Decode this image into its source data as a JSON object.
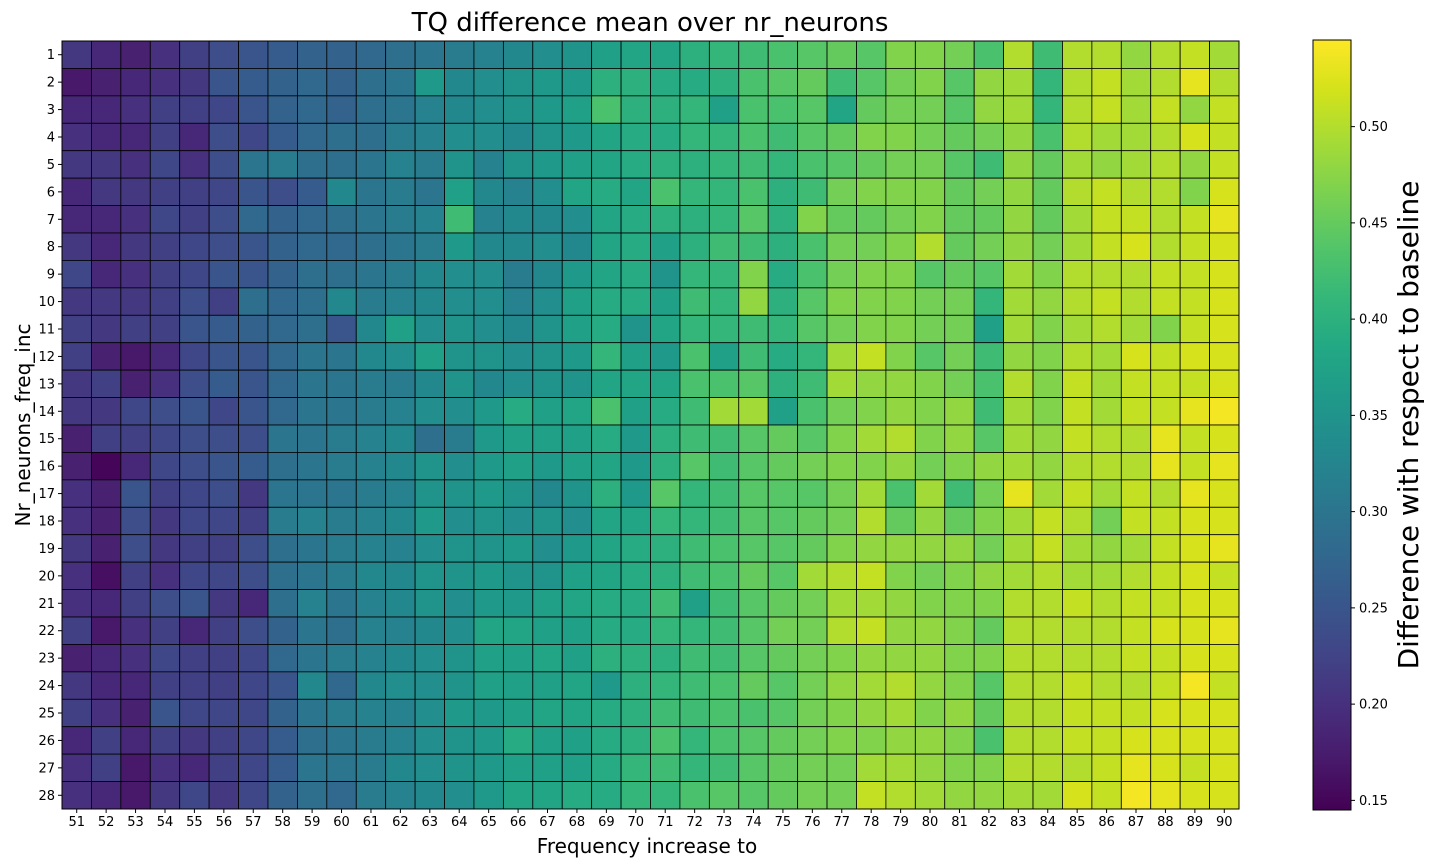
{
  "chart_data": {
    "type": "heatmap",
    "title": "TQ difference mean over nr_neurons",
    "xlabel": "Frequency increase to",
    "ylabel": "Nr_neurons_freq_inc",
    "x": [
      51,
      52,
      53,
      54,
      55,
      56,
      57,
      58,
      59,
      60,
      61,
      62,
      63,
      64,
      65,
      66,
      67,
      68,
      69,
      70,
      71,
      72,
      73,
      74,
      75,
      76,
      77,
      78,
      79,
      80,
      81,
      82,
      83,
      84,
      85,
      86,
      87,
      88,
      89,
      90
    ],
    "y": [
      1,
      2,
      3,
      4,
      5,
      6,
      7,
      8,
      9,
      10,
      11,
      12,
      13,
      14,
      15,
      16,
      17,
      18,
      19,
      20,
      21,
      22,
      23,
      24,
      25,
      26,
      27,
      28
    ],
    "values": [
      [
        0.21,
        0.19,
        0.18,
        0.2,
        0.22,
        0.24,
        0.25,
        0.26,
        0.27,
        0.27,
        0.28,
        0.29,
        0.3,
        0.31,
        0.32,
        0.33,
        0.34,
        0.35,
        0.37,
        0.38,
        0.38,
        0.4,
        0.41,
        0.42,
        0.43,
        0.44,
        0.45,
        0.44,
        0.47,
        0.47,
        0.46,
        0.43,
        0.5,
        0.42,
        0.5,
        0.5,
        0.48,
        0.5,
        0.51,
        0.49
      ],
      [
        0.17,
        0.18,
        0.19,
        0.2,
        0.21,
        0.25,
        0.26,
        0.27,
        0.28,
        0.27,
        0.29,
        0.3,
        0.36,
        0.33,
        0.34,
        0.35,
        0.36,
        0.36,
        0.4,
        0.4,
        0.39,
        0.39,
        0.4,
        0.43,
        0.44,
        0.45,
        0.42,
        0.44,
        0.46,
        0.47,
        0.44,
        0.48,
        0.49,
        0.41,
        0.5,
        0.51,
        0.49,
        0.5,
        0.53,
        0.5
      ],
      [
        0.19,
        0.19,
        0.2,
        0.22,
        0.22,
        0.23,
        0.25,
        0.27,
        0.28,
        0.27,
        0.29,
        0.3,
        0.32,
        0.33,
        0.34,
        0.35,
        0.36,
        0.37,
        0.43,
        0.4,
        0.4,
        0.41,
        0.37,
        0.43,
        0.43,
        0.44,
        0.38,
        0.45,
        0.46,
        0.46,
        0.44,
        0.48,
        0.49,
        0.41,
        0.5,
        0.51,
        0.49,
        0.51,
        0.48,
        0.51
      ],
      [
        0.2,
        0.19,
        0.19,
        0.22,
        0.19,
        0.24,
        0.23,
        0.26,
        0.28,
        0.29,
        0.29,
        0.31,
        0.32,
        0.34,
        0.34,
        0.33,
        0.35,
        0.36,
        0.38,
        0.39,
        0.39,
        0.41,
        0.41,
        0.43,
        0.42,
        0.44,
        0.45,
        0.47,
        0.47,
        0.46,
        0.45,
        0.46,
        0.48,
        0.43,
        0.5,
        0.49,
        0.49,
        0.5,
        0.52,
        0.51
      ],
      [
        0.21,
        0.21,
        0.2,
        0.23,
        0.2,
        0.24,
        0.3,
        0.31,
        0.29,
        0.29,
        0.3,
        0.32,
        0.31,
        0.35,
        0.32,
        0.35,
        0.36,
        0.37,
        0.38,
        0.39,
        0.4,
        0.4,
        0.41,
        0.42,
        0.41,
        0.43,
        0.44,
        0.45,
        0.46,
        0.46,
        0.44,
        0.42,
        0.48,
        0.45,
        0.49,
        0.48,
        0.49,
        0.5,
        0.48,
        0.51
      ],
      [
        0.19,
        0.21,
        0.21,
        0.22,
        0.22,
        0.23,
        0.25,
        0.24,
        0.26,
        0.33,
        0.3,
        0.31,
        0.3,
        0.37,
        0.33,
        0.32,
        0.34,
        0.38,
        0.39,
        0.38,
        0.43,
        0.41,
        0.41,
        0.43,
        0.4,
        0.42,
        0.46,
        0.47,
        0.47,
        0.47,
        0.45,
        0.46,
        0.48,
        0.45,
        0.5,
        0.51,
        0.5,
        0.5,
        0.47,
        0.52
      ],
      [
        0.19,
        0.19,
        0.2,
        0.23,
        0.22,
        0.24,
        0.28,
        0.27,
        0.28,
        0.29,
        0.3,
        0.31,
        0.32,
        0.42,
        0.32,
        0.33,
        0.33,
        0.34,
        0.38,
        0.39,
        0.4,
        0.4,
        0.41,
        0.44,
        0.4,
        0.47,
        0.45,
        0.45,
        0.46,
        0.47,
        0.45,
        0.45,
        0.48,
        0.45,
        0.49,
        0.51,
        0.51,
        0.5,
        0.51,
        0.53
      ],
      [
        0.21,
        0.19,
        0.21,
        0.22,
        0.23,
        0.24,
        0.25,
        0.27,
        0.28,
        0.28,
        0.29,
        0.3,
        0.31,
        0.36,
        0.33,
        0.33,
        0.34,
        0.33,
        0.38,
        0.39,
        0.37,
        0.4,
        0.42,
        0.42,
        0.4,
        0.43,
        0.46,
        0.46,
        0.47,
        0.5,
        0.45,
        0.46,
        0.48,
        0.46,
        0.49,
        0.51,
        0.52,
        0.5,
        0.51,
        0.52
      ],
      [
        0.23,
        0.19,
        0.2,
        0.22,
        0.23,
        0.25,
        0.25,
        0.27,
        0.29,
        0.29,
        0.3,
        0.31,
        0.33,
        0.34,
        0.34,
        0.31,
        0.33,
        0.36,
        0.38,
        0.39,
        0.35,
        0.41,
        0.41,
        0.47,
        0.39,
        0.43,
        0.46,
        0.47,
        0.47,
        0.44,
        0.45,
        0.44,
        0.49,
        0.47,
        0.5,
        0.5,
        0.5,
        0.51,
        0.51,
        0.52
      ],
      [
        0.21,
        0.21,
        0.21,
        0.22,
        0.24,
        0.22,
        0.29,
        0.28,
        0.29,
        0.33,
        0.31,
        0.32,
        0.33,
        0.34,
        0.34,
        0.32,
        0.34,
        0.37,
        0.39,
        0.39,
        0.37,
        0.42,
        0.41,
        0.48,
        0.4,
        0.44,
        0.47,
        0.47,
        0.47,
        0.46,
        0.46,
        0.41,
        0.49,
        0.48,
        0.5,
        0.51,
        0.5,
        0.51,
        0.51,
        0.52
      ],
      [
        0.22,
        0.21,
        0.22,
        0.22,
        0.25,
        0.26,
        0.27,
        0.28,
        0.29,
        0.25,
        0.33,
        0.37,
        0.34,
        0.35,
        0.34,
        0.33,
        0.35,
        0.37,
        0.39,
        0.35,
        0.38,
        0.41,
        0.41,
        0.42,
        0.41,
        0.44,
        0.46,
        0.47,
        0.47,
        0.46,
        0.46,
        0.37,
        0.49,
        0.47,
        0.49,
        0.5,
        0.49,
        0.47,
        0.51,
        0.52
      ],
      [
        0.22,
        0.18,
        0.17,
        0.19,
        0.23,
        0.25,
        0.25,
        0.28,
        0.3,
        0.3,
        0.33,
        0.34,
        0.37,
        0.35,
        0.35,
        0.34,
        0.35,
        0.36,
        0.41,
        0.37,
        0.36,
        0.43,
        0.37,
        0.42,
        0.39,
        0.41,
        0.49,
        0.51,
        0.47,
        0.44,
        0.46,
        0.42,
        0.48,
        0.47,
        0.5,
        0.49,
        0.52,
        0.51,
        0.52,
        0.52
      ],
      [
        0.21,
        0.22,
        0.18,
        0.2,
        0.24,
        0.26,
        0.25,
        0.28,
        0.3,
        0.3,
        0.31,
        0.31,
        0.33,
        0.35,
        0.33,
        0.34,
        0.35,
        0.35,
        0.38,
        0.38,
        0.38,
        0.43,
        0.43,
        0.44,
        0.4,
        0.42,
        0.49,
        0.48,
        0.48,
        0.47,
        0.46,
        0.43,
        0.5,
        0.47,
        0.51,
        0.49,
        0.51,
        0.51,
        0.51,
        0.52
      ],
      [
        0.21,
        0.21,
        0.23,
        0.24,
        0.25,
        0.23,
        0.25,
        0.28,
        0.3,
        0.3,
        0.31,
        0.32,
        0.34,
        0.34,
        0.36,
        0.39,
        0.37,
        0.38,
        0.43,
        0.37,
        0.39,
        0.42,
        0.49,
        0.49,
        0.37,
        0.43,
        0.46,
        0.47,
        0.48,
        0.47,
        0.48,
        0.42,
        0.49,
        0.47,
        0.51,
        0.49,
        0.51,
        0.51,
        0.53,
        0.54
      ],
      [
        0.18,
        0.22,
        0.22,
        0.23,
        0.24,
        0.24,
        0.24,
        0.3,
        0.3,
        0.31,
        0.32,
        0.33,
        0.29,
        0.31,
        0.36,
        0.37,
        0.37,
        0.37,
        0.39,
        0.36,
        0.4,
        0.42,
        0.42,
        0.44,
        0.45,
        0.44,
        0.47,
        0.49,
        0.5,
        0.47,
        0.48,
        0.44,
        0.49,
        0.48,
        0.51,
        0.5,
        0.5,
        0.53,
        0.51,
        0.52
      ],
      [
        0.18,
        0.15,
        0.19,
        0.23,
        0.24,
        0.25,
        0.26,
        0.29,
        0.3,
        0.31,
        0.32,
        0.33,
        0.35,
        0.34,
        0.36,
        0.37,
        0.36,
        0.37,
        0.38,
        0.36,
        0.4,
        0.44,
        0.42,
        0.44,
        0.45,
        0.46,
        0.47,
        0.47,
        0.48,
        0.46,
        0.47,
        0.48,
        0.49,
        0.48,
        0.5,
        0.5,
        0.5,
        0.53,
        0.51,
        0.53
      ],
      [
        0.2,
        0.18,
        0.25,
        0.22,
        0.23,
        0.24,
        0.21,
        0.3,
        0.3,
        0.3,
        0.31,
        0.32,
        0.35,
        0.35,
        0.36,
        0.35,
        0.33,
        0.35,
        0.4,
        0.36,
        0.44,
        0.41,
        0.42,
        0.44,
        0.44,
        0.44,
        0.46,
        0.49,
        0.43,
        0.49,
        0.42,
        0.46,
        0.53,
        0.49,
        0.51,
        0.49,
        0.51,
        0.5,
        0.53,
        0.52
      ],
      [
        0.2,
        0.18,
        0.24,
        0.21,
        0.23,
        0.23,
        0.22,
        0.31,
        0.32,
        0.31,
        0.32,
        0.33,
        0.36,
        0.34,
        0.35,
        0.34,
        0.35,
        0.34,
        0.38,
        0.38,
        0.41,
        0.41,
        0.42,
        0.44,
        0.44,
        0.45,
        0.46,
        0.5,
        0.45,
        0.48,
        0.45,
        0.47,
        0.49,
        0.51,
        0.5,
        0.46,
        0.51,
        0.51,
        0.52,
        0.52
      ],
      [
        0.21,
        0.18,
        0.24,
        0.21,
        0.22,
        0.22,
        0.24,
        0.29,
        0.3,
        0.31,
        0.32,
        0.32,
        0.34,
        0.35,
        0.35,
        0.36,
        0.34,
        0.36,
        0.38,
        0.39,
        0.4,
        0.42,
        0.43,
        0.44,
        0.44,
        0.45,
        0.47,
        0.48,
        0.48,
        0.48,
        0.48,
        0.46,
        0.49,
        0.51,
        0.49,
        0.48,
        0.49,
        0.51,
        0.52,
        0.53
      ],
      [
        0.2,
        0.16,
        0.22,
        0.2,
        0.23,
        0.23,
        0.24,
        0.29,
        0.3,
        0.31,
        0.33,
        0.33,
        0.35,
        0.35,
        0.36,
        0.35,
        0.35,
        0.37,
        0.38,
        0.39,
        0.4,
        0.42,
        0.43,
        0.45,
        0.44,
        0.49,
        0.5,
        0.51,
        0.47,
        0.46,
        0.47,
        0.48,
        0.49,
        0.5,
        0.49,
        0.49,
        0.5,
        0.51,
        0.52,
        0.51
      ],
      [
        0.2,
        0.19,
        0.22,
        0.24,
        0.25,
        0.21,
        0.19,
        0.29,
        0.32,
        0.3,
        0.32,
        0.33,
        0.35,
        0.34,
        0.36,
        0.36,
        0.37,
        0.38,
        0.39,
        0.39,
        0.42,
        0.37,
        0.42,
        0.44,
        0.45,
        0.46,
        0.49,
        0.49,
        0.48,
        0.47,
        0.47,
        0.47,
        0.5,
        0.5,
        0.51,
        0.5,
        0.51,
        0.51,
        0.52,
        0.52
      ],
      [
        0.22,
        0.17,
        0.2,
        0.22,
        0.19,
        0.22,
        0.24,
        0.27,
        0.3,
        0.29,
        0.32,
        0.32,
        0.33,
        0.34,
        0.38,
        0.38,
        0.37,
        0.37,
        0.39,
        0.39,
        0.41,
        0.41,
        0.42,
        0.44,
        0.46,
        0.46,
        0.5,
        0.51,
        0.48,
        0.48,
        0.47,
        0.45,
        0.5,
        0.5,
        0.5,
        0.5,
        0.51,
        0.52,
        0.52,
        0.53
      ],
      [
        0.18,
        0.19,
        0.2,
        0.23,
        0.22,
        0.22,
        0.23,
        0.28,
        0.3,
        0.31,
        0.32,
        0.33,
        0.34,
        0.35,
        0.37,
        0.37,
        0.38,
        0.37,
        0.4,
        0.4,
        0.4,
        0.42,
        0.42,
        0.44,
        0.45,
        0.46,
        0.47,
        0.48,
        0.48,
        0.48,
        0.47,
        0.47,
        0.5,
        0.5,
        0.5,
        0.5,
        0.51,
        0.51,
        0.52,
        0.52
      ],
      [
        0.21,
        0.19,
        0.19,
        0.22,
        0.22,
        0.22,
        0.23,
        0.25,
        0.33,
        0.28,
        0.33,
        0.34,
        0.34,
        0.35,
        0.37,
        0.37,
        0.37,
        0.38,
        0.36,
        0.4,
        0.41,
        0.42,
        0.43,
        0.45,
        0.44,
        0.46,
        0.48,
        0.49,
        0.5,
        0.48,
        0.47,
        0.44,
        0.5,
        0.5,
        0.51,
        0.5,
        0.5,
        0.51,
        0.54,
        0.51
      ],
      [
        0.22,
        0.2,
        0.18,
        0.25,
        0.23,
        0.23,
        0.23,
        0.27,
        0.3,
        0.31,
        0.32,
        0.32,
        0.34,
        0.36,
        0.36,
        0.37,
        0.38,
        0.38,
        0.39,
        0.4,
        0.42,
        0.42,
        0.43,
        0.43,
        0.44,
        0.46,
        0.47,
        0.48,
        0.49,
        0.47,
        0.48,
        0.45,
        0.5,
        0.5,
        0.51,
        0.51,
        0.51,
        0.52,
        0.52,
        0.52
      ],
      [
        0.19,
        0.22,
        0.19,
        0.22,
        0.21,
        0.22,
        0.23,
        0.26,
        0.29,
        0.3,
        0.31,
        0.32,
        0.34,
        0.35,
        0.36,
        0.39,
        0.37,
        0.37,
        0.39,
        0.4,
        0.43,
        0.41,
        0.43,
        0.44,
        0.45,
        0.46,
        0.47,
        0.47,
        0.48,
        0.48,
        0.47,
        0.43,
        0.5,
        0.5,
        0.51,
        0.51,
        0.52,
        0.52,
        0.52,
        0.52
      ],
      [
        0.2,
        0.22,
        0.17,
        0.2,
        0.19,
        0.22,
        0.23,
        0.26,
        0.3,
        0.3,
        0.31,
        0.33,
        0.34,
        0.35,
        0.36,
        0.37,
        0.37,
        0.37,
        0.39,
        0.41,
        0.42,
        0.41,
        0.42,
        0.44,
        0.45,
        0.46,
        0.46,
        0.49,
        0.49,
        0.48,
        0.47,
        0.47,
        0.5,
        0.5,
        0.5,
        0.51,
        0.53,
        0.52,
        0.51,
        0.52
      ],
      [
        0.2,
        0.19,
        0.17,
        0.21,
        0.23,
        0.21,
        0.23,
        0.27,
        0.29,
        0.28,
        0.31,
        0.32,
        0.33,
        0.34,
        0.36,
        0.38,
        0.38,
        0.39,
        0.39,
        0.41,
        0.41,
        0.43,
        0.44,
        0.44,
        0.45,
        0.46,
        0.46,
        0.51,
        0.5,
        0.49,
        0.48,
        0.48,
        0.49,
        0.49,
        0.52,
        0.51,
        0.54,
        0.53,
        0.52,
        0.52
      ]
    ],
    "colorbar": {
      "label": "Difference with respect to baseline",
      "min": 0.145,
      "max": 0.545,
      "ticks": [
        0.15,
        0.2,
        0.25,
        0.3,
        0.35,
        0.4,
        0.45,
        0.5
      ],
      "tick_labels": [
        "0.15",
        "0.20",
        "0.25",
        "0.30",
        "0.35",
        "0.40",
        "0.45",
        "0.50"
      ],
      "colormap": "viridis"
    },
    "grid": false
  }
}
